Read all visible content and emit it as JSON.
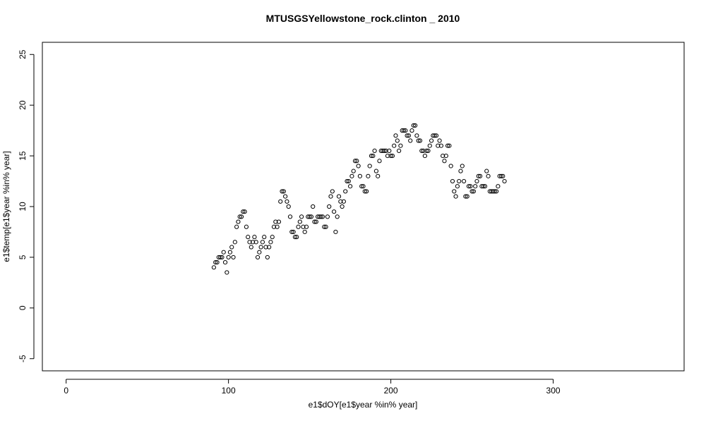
{
  "chart_data": {
    "type": "scatter",
    "title": "MTUSGSYellowstone_rock.clinton _ 2010",
    "x_label": "e1$dOY[e1$year %in% year]",
    "y_label": "e1$temp[e1$year %in% year]",
    "xlim": [
      -14.64,
      380.64
    ],
    "ylim": [
      -6.2,
      26.2
    ],
    "xticks": [
      0,
      100,
      200,
      300
    ],
    "yticks": [
      -5,
      0,
      5,
      10,
      15,
      20,
      25
    ],
    "color": "#000000",
    "x": [
      91,
      92,
      93,
      94,
      95,
      96,
      97,
      98,
      99,
      100,
      101,
      102,
      103,
      104,
      105,
      106,
      107,
      108,
      109,
      110,
      111,
      112,
      113,
      114,
      115,
      116,
      117,
      118,
      119,
      120,
      121,
      122,
      123,
      124,
      125,
      126,
      127,
      128,
      129,
      130,
      131,
      132,
      133,
      134,
      135,
      136,
      137,
      138,
      139,
      140,
      141,
      142,
      143,
      144,
      145,
      146,
      147,
      148,
      149,
      150,
      151,
      152,
      153,
      154,
      155,
      156,
      157,
      158,
      159,
      160,
      161,
      162,
      163,
      164,
      165,
      166,
      167,
      168,
      169,
      170,
      171,
      172,
      173,
      174,
      175,
      176,
      177,
      178,
      179,
      180,
      181,
      182,
      183,
      184,
      185,
      186,
      187,
      188,
      189,
      190,
      191,
      192,
      193,
      194,
      195,
      196,
      197,
      198,
      199,
      200,
      201,
      202,
      203,
      204,
      205,
      206,
      207,
      208,
      209,
      210,
      211,
      212,
      213,
      214,
      215,
      216,
      217,
      218,
      219,
      220,
      221,
      222,
      223,
      224,
      225,
      226,
      227,
      228,
      229,
      230,
      231,
      232,
      233,
      234,
      235,
      236,
      237,
      238,
      239,
      240,
      241,
      242,
      243,
      244,
      245,
      246,
      247,
      248,
      249,
      250,
      251,
      252,
      253,
      254,
      255,
      256,
      257,
      258,
      259,
      260,
      261,
      262,
      263,
      264,
      265,
      266,
      267,
      268,
      269,
      270
    ],
    "values": [
      4,
      4.5,
      4.5,
      5,
      5,
      5,
      5.5,
      4.5,
      3.5,
      5,
      5.5,
      6,
      5,
      6.5,
      8,
      8.5,
      9,
      9,
      9.5,
      9.5,
      8,
      7,
      6.5,
      6,
      6.5,
      7,
      6.5,
      5,
      5.5,
      6,
      6.5,
      7,
      6,
      5,
      6,
      6.5,
      7,
      8,
      8.5,
      8,
      8.5,
      10.5,
      11.5,
      11.5,
      11,
      10.5,
      10,
      9,
      7.5,
      7.5,
      7,
      7,
      8,
      8.5,
      9,
      8,
      7.5,
      8,
      9,
      9,
      9,
      10,
      8.5,
      8.5,
      9,
      9,
      9,
      9,
      8,
      8,
      9,
      10,
      11,
      11.5,
      9.5,
      7.5,
      9,
      11,
      10.5,
      10,
      10.5,
      11.5,
      12.5,
      12.5,
      12,
      13,
      13.5,
      14.5,
      14.5,
      14,
      13,
      12,
      12,
      11.5,
      11.5,
      13,
      14,
      15,
      15,
      15.5,
      13.5,
      13,
      14.5,
      15.5,
      15.5,
      15.5,
      15.5,
      15,
      15.5,
      15,
      15,
      16,
      17,
      16.5,
      15.5,
      16,
      17.5,
      17.5,
      17.5,
      17,
      17,
      16.5,
      17.5,
      18,
      18,
      17,
      16.5,
      16.5,
      15.5,
      15.5,
      15,
      15.5,
      15.5,
      16,
      16.5,
      17,
      17,
      17,
      16,
      16.5,
      16,
      15,
      14.5,
      15,
      16,
      16,
      14,
      12.5,
      11.5,
      11,
      12,
      12.5,
      13.5,
      14,
      12.5,
      11,
      11,
      12,
      12,
      11.5,
      11.5,
      12,
      12.5,
      13,
      13,
      12,
      12,
      12,
      13.5,
      13,
      11.5,
      11.5,
      11.5,
      11.5,
      11.5,
      12,
      13,
      13,
      13,
      12.5
    ]
  }
}
